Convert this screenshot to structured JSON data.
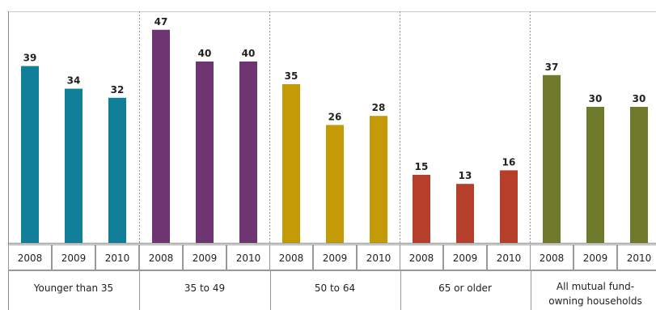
{
  "chart_data": {
    "type": "bar",
    "ylim": [
      0,
      50
    ],
    "grid": false,
    "groups": [
      {
        "name": "Younger than 35",
        "color": "#117f99",
        "categories": [
          "2008",
          "2009",
          "2010"
        ],
        "values": [
          39,
          34,
          32
        ]
      },
      {
        "name": "35 to 49",
        "color": "#6e3572",
        "categories": [
          "2008",
          "2009",
          "2010"
        ],
        "values": [
          47,
          40,
          40
        ]
      },
      {
        "name": "50 to 64",
        "color": "#c49a06",
        "categories": [
          "2008",
          "2009",
          "2010"
        ],
        "values": [
          35,
          26,
          28
        ]
      },
      {
        "name": "65 or older",
        "color": "#b63f2c",
        "categories": [
          "2008",
          "2009",
          "2010"
        ],
        "values": [
          15,
          13,
          16
        ]
      },
      {
        "name": [
          "All mutual fund-",
          "owning households"
        ],
        "color": "#6f7b2b",
        "categories": [
          "2008",
          "2009",
          "2010"
        ],
        "values": [
          37,
          30,
          30
        ]
      }
    ]
  }
}
